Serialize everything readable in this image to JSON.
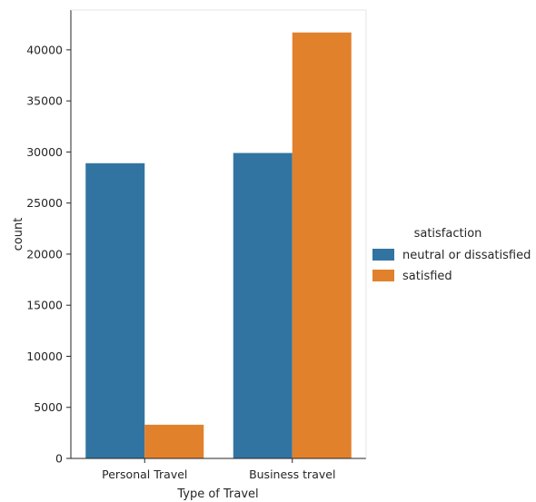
{
  "chart_data": {
    "type": "bar",
    "title": "",
    "xlabel": "Type of Travel",
    "ylabel": "count",
    "categories": [
      "Personal Travel",
      "Business travel"
    ],
    "series": [
      {
        "name": "neutral or dissatisfied",
        "values": [
          28900,
          29900
        ],
        "color": "#3274a1"
      },
      {
        "name": "satisfied",
        "values": [
          3300,
          41700
        ],
        "color": "#e1812c"
      }
    ],
    "ylim": [
      0,
      43900
    ],
    "yticks": [
      0,
      5000,
      10000,
      15000,
      20000,
      25000,
      30000,
      35000,
      40000
    ],
    "grid": false,
    "legend": {
      "title": "satisfaction",
      "placement": "right"
    }
  }
}
